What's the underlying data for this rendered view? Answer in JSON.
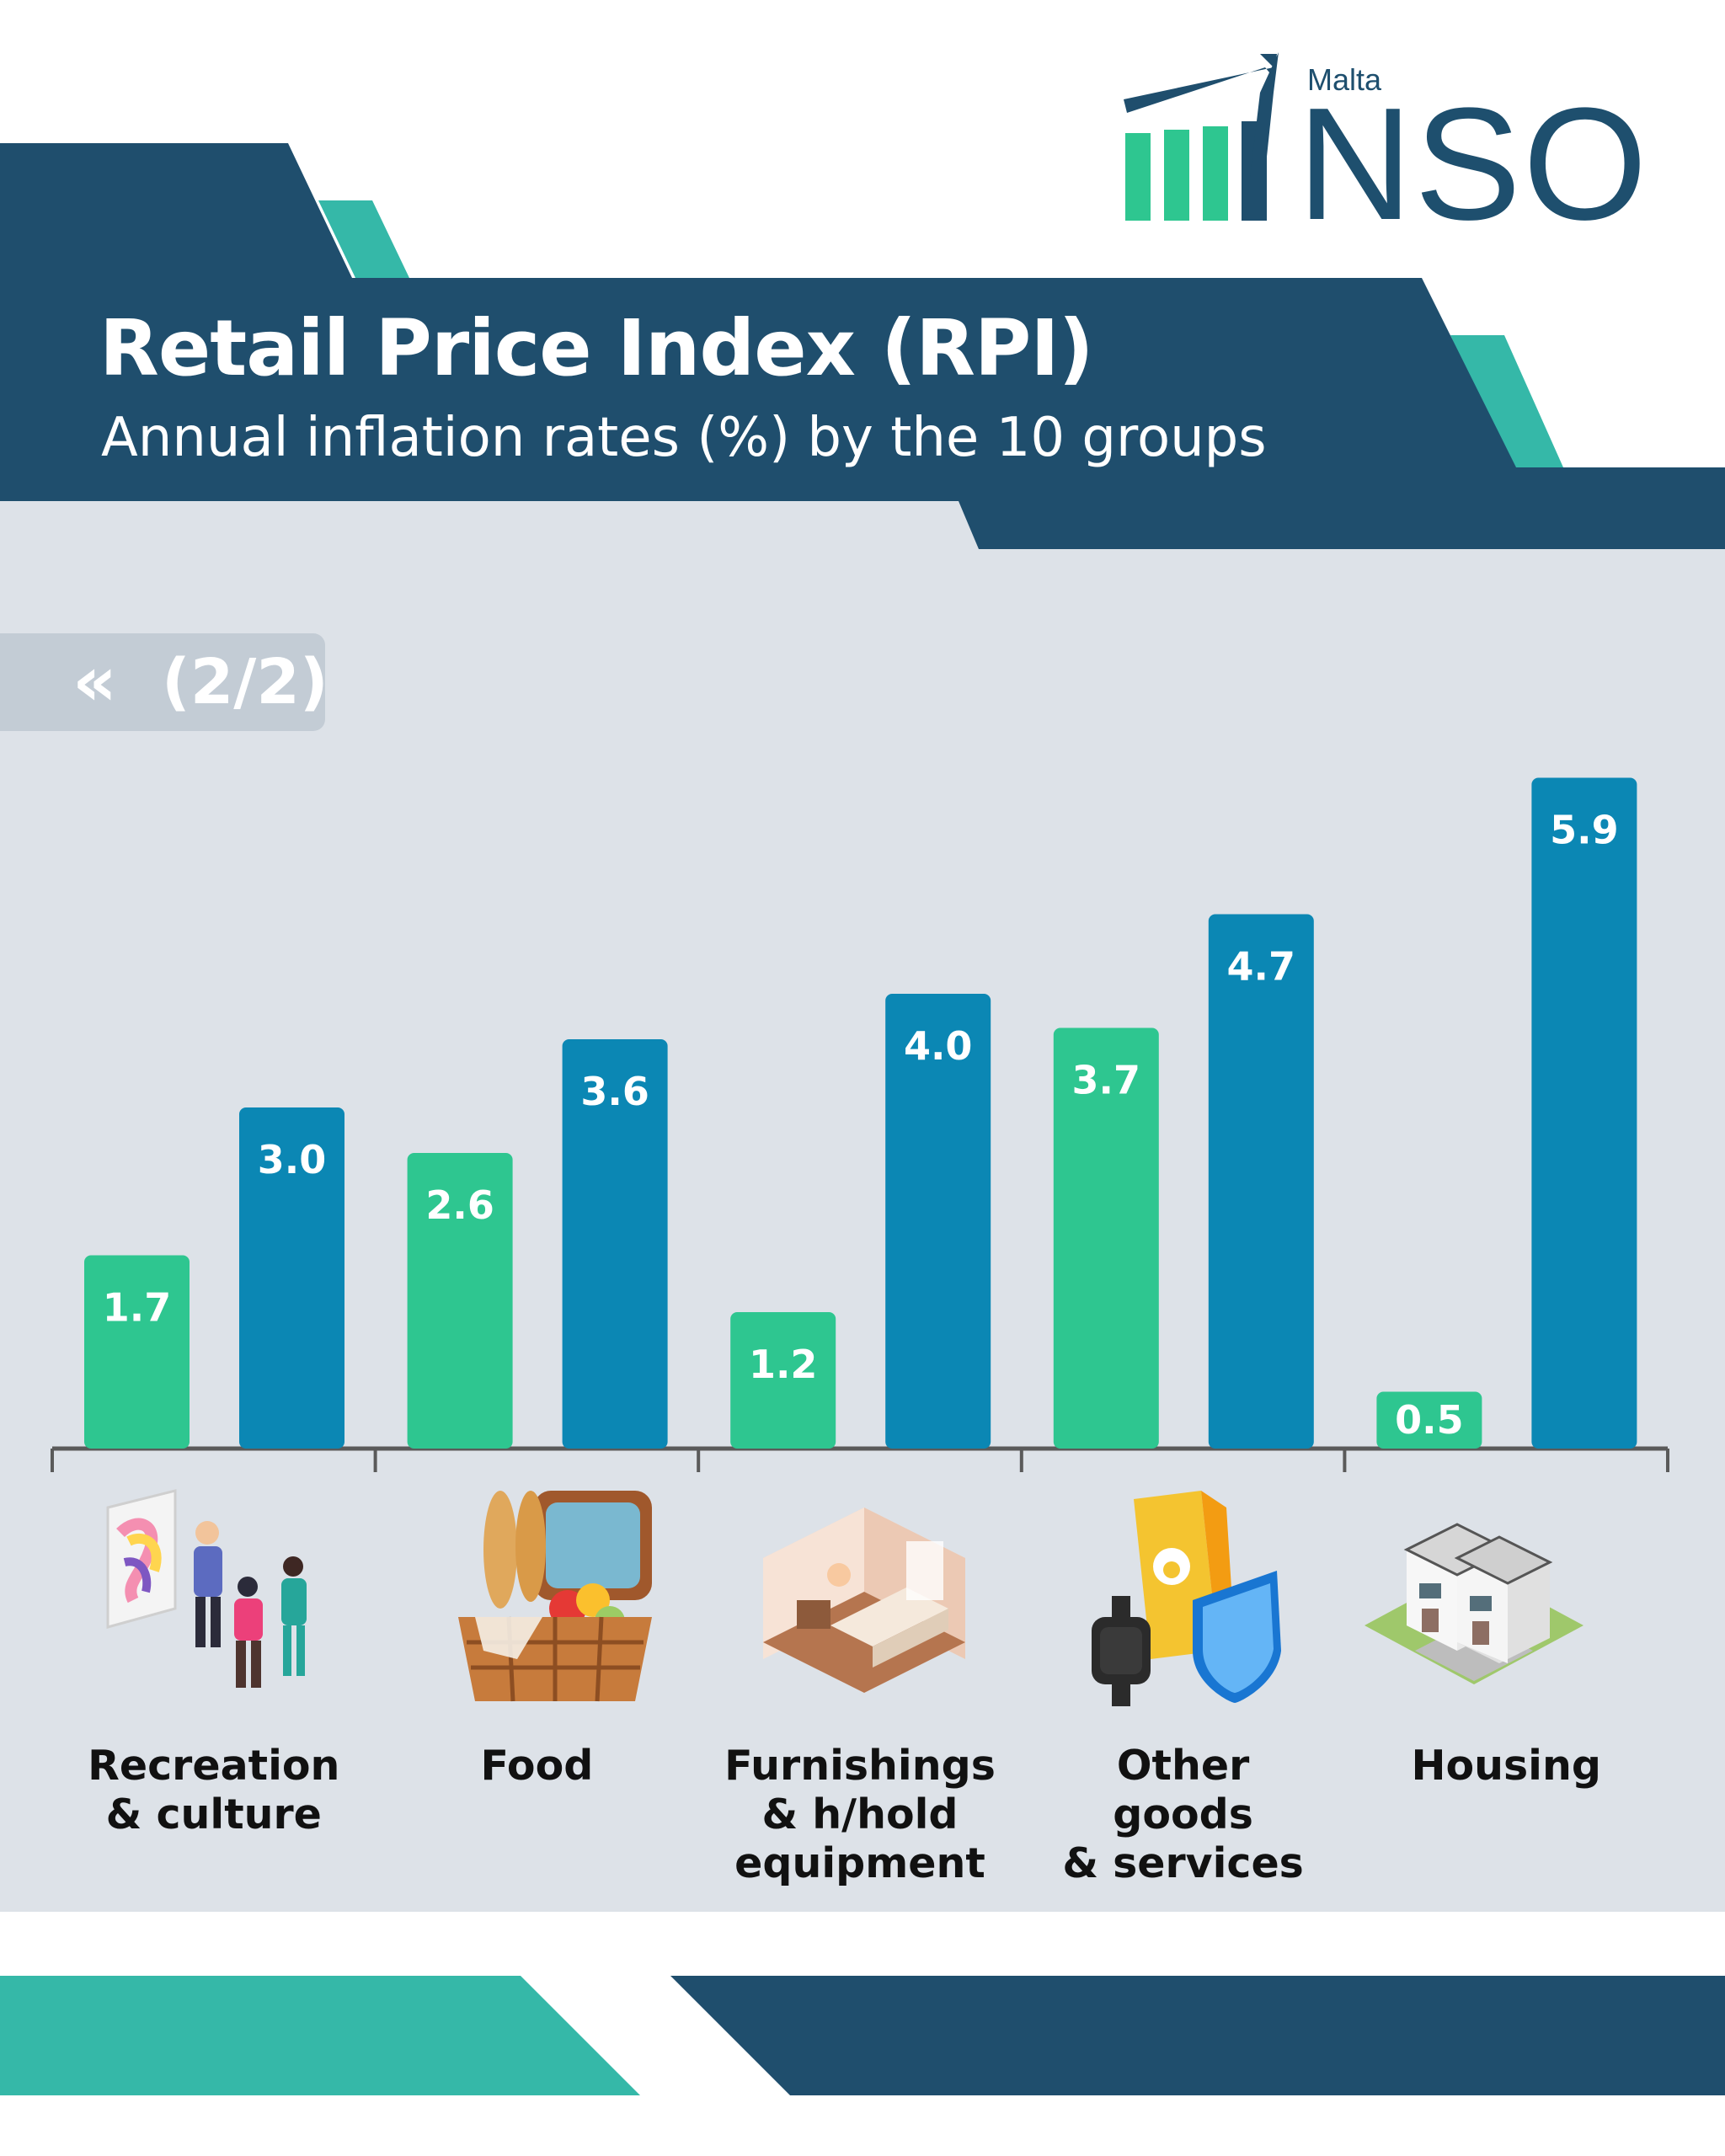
{
  "header": {
    "title": "Retail Price Index (RPI)",
    "subtitle": "Annual inflation rates (%) by the 10 groups"
  },
  "logo": {
    "country": "Malta",
    "name": "NSO"
  },
  "page_indicator": {
    "icon": "double-chevron-left-icon",
    "label": "(2/2)"
  },
  "colors": {
    "navy": "#1f4e6d",
    "teal": "#35b8a8",
    "panel": "#dde2e8",
    "series_green": "#2ec690",
    "series_blue": "#0b87b4"
  },
  "chart_data": {
    "type": "bar",
    "categories": [
      "Recreation\n& culture",
      "Food",
      "Furnishings\n& h/hold\nequipment",
      "Other goods\n& services",
      "Housing"
    ],
    "series": [
      {
        "values": [
          1.7,
          2.6,
          1.2,
          3.7,
          0.5
        ]
      },
      {
        "values": [
          3.0,
          3.6,
          4.0,
          4.7,
          5.9
        ]
      }
    ],
    "data_labels": true,
    "grid": false
  },
  "icons": [
    "art-gallery-people-icon",
    "picnic-basket-icon",
    "bedroom-interior-icon",
    "pet-food-watch-shield-icon",
    "terraced-houses-icon"
  ]
}
